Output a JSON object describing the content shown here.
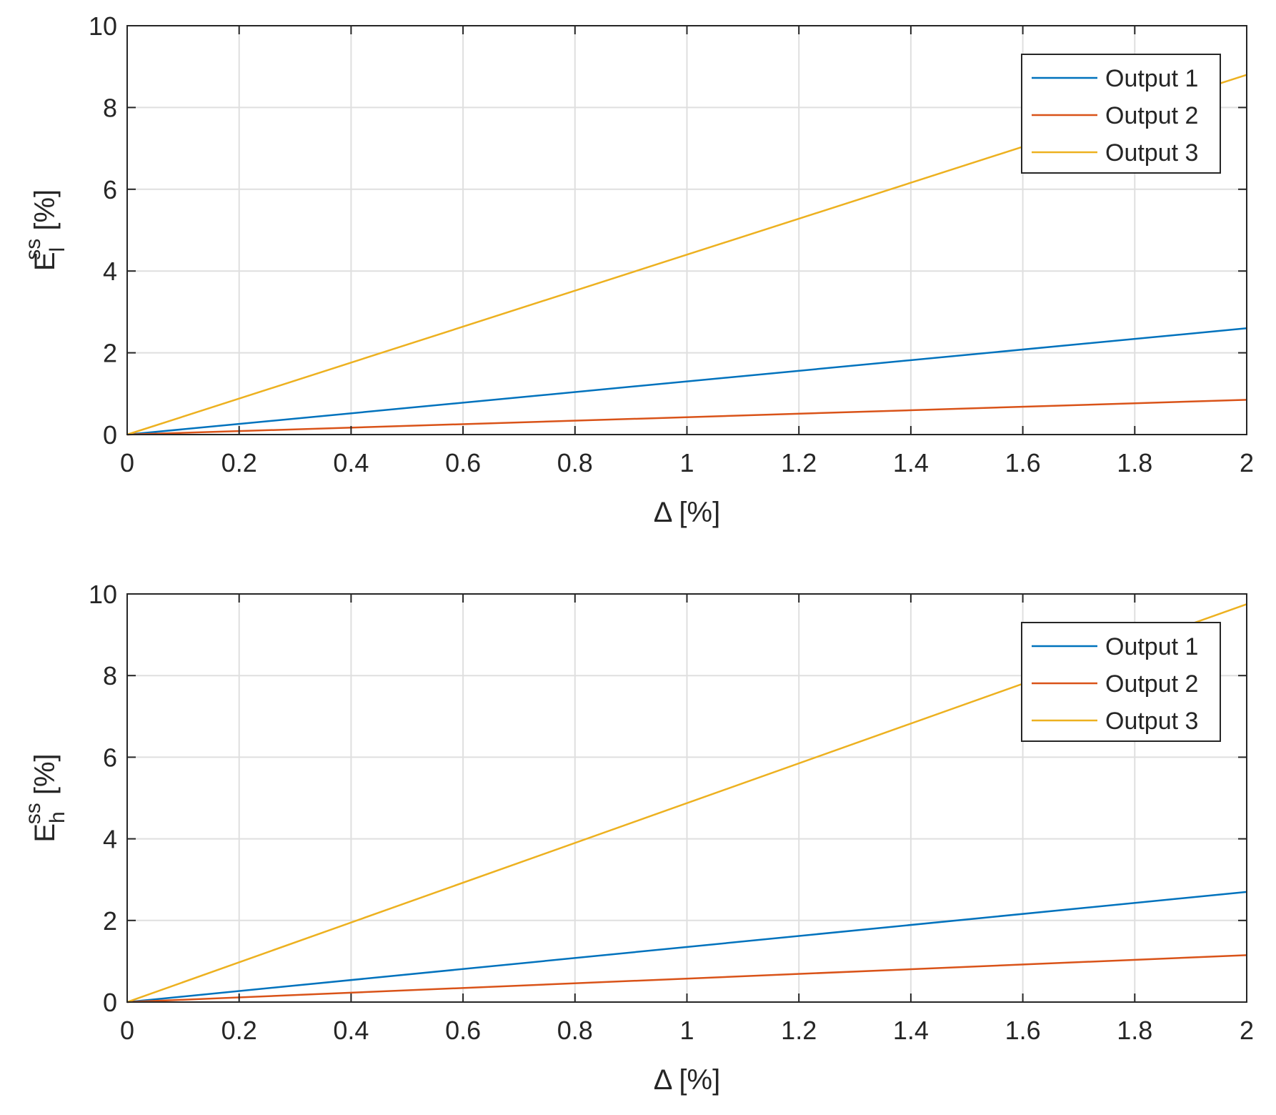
{
  "chart_data": [
    {
      "type": "line",
      "xlabel": "Δ [%]",
      "ylabel": {
        "base": "E",
        "superscript": "ss",
        "subscript": "l",
        "unit": "[%]"
      },
      "xlim": [
        0,
        2
      ],
      "ylim": [
        0,
        10
      ],
      "xticks": [
        "0",
        "0.2",
        "0.4",
        "0.6",
        "0.8",
        "1",
        "1.2",
        "1.4",
        "1.6",
        "1.8",
        "2"
      ],
      "yticks": [
        "0",
        "2",
        "4",
        "6",
        "8",
        "10"
      ],
      "grid": true,
      "legend_position": "top-right",
      "series": [
        {
          "name": "Output 1",
          "color": "#0072BD",
          "x": [
            0,
            2
          ],
          "y": [
            0,
            2.6
          ]
        },
        {
          "name": "Output 2",
          "color": "#D95319",
          "x": [
            0,
            2
          ],
          "y": [
            0,
            0.85
          ]
        },
        {
          "name": "Output 3",
          "color": "#EDB120",
          "x": [
            0,
            2
          ],
          "y": [
            0,
            8.8
          ]
        }
      ]
    },
    {
      "type": "line",
      "xlabel": "Δ [%]",
      "ylabel": {
        "base": "E",
        "superscript": "ss",
        "subscript": "h",
        "unit": "[%]"
      },
      "xlim": [
        0,
        2
      ],
      "ylim": [
        0,
        10
      ],
      "xticks": [
        "0",
        "0.2",
        "0.4",
        "0.6",
        "0.8",
        "1",
        "1.2",
        "1.4",
        "1.6",
        "1.8",
        "2"
      ],
      "yticks": [
        "0",
        "2",
        "4",
        "6",
        "8",
        "10"
      ],
      "grid": true,
      "legend_position": "top-right",
      "series": [
        {
          "name": "Output 1",
          "color": "#0072BD",
          "x": [
            0,
            2
          ],
          "y": [
            0,
            2.7
          ]
        },
        {
          "name": "Output 2",
          "color": "#D95319",
          "x": [
            0,
            2
          ],
          "y": [
            0,
            1.15
          ]
        },
        {
          "name": "Output 3",
          "color": "#EDB120",
          "x": [
            0,
            2
          ],
          "y": [
            0,
            9.75
          ]
        }
      ]
    }
  ]
}
